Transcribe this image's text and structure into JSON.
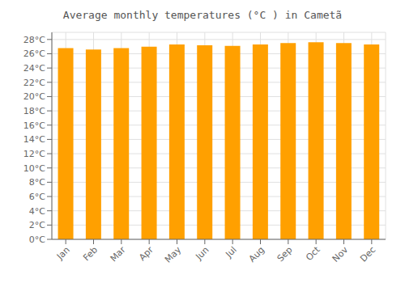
{
  "chart_data": {
    "type": "bar",
    "title": "Average monthly temperatures (°C ) in Cametã",
    "categories": [
      "Jan",
      "Feb",
      "Mar",
      "Apr",
      "May",
      "Jun",
      "Jul",
      "Aug",
      "Sep",
      "Oct",
      "Nov",
      "Dec"
    ],
    "values": [
      26.8,
      26.6,
      26.8,
      27.0,
      27.3,
      27.2,
      27.1,
      27.3,
      27.5,
      27.6,
      27.5,
      27.3
    ],
    "color": "#FFA000",
    "ylim": [
      0,
      29
    ],
    "yticks": [
      {
        "value": 0,
        "label": "0°C"
      },
      {
        "value": 2,
        "label": "2°C"
      },
      {
        "value": 4,
        "label": "4°C"
      },
      {
        "value": 6,
        "label": "6°C"
      },
      {
        "value": 8,
        "label": "8°C"
      },
      {
        "value": 10,
        "label": "10°C"
      },
      {
        "value": 12,
        "label": "12°C"
      },
      {
        "value": 14,
        "label": "14°C"
      },
      {
        "value": 16,
        "label": "16°C"
      },
      {
        "value": 18,
        "label": "18°C"
      },
      {
        "value": 20,
        "label": "20°C"
      },
      {
        "value": 22,
        "label": "22°C"
      },
      {
        "value": 24,
        "label": "24°C"
      },
      {
        "value": 26,
        "label": "26°C"
      },
      {
        "value": 28,
        "label": "28°C"
      }
    ],
    "grid": true
  }
}
